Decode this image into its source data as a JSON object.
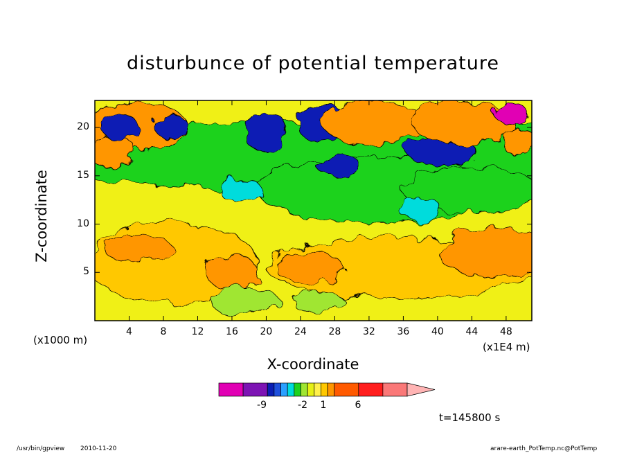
{
  "chart_data": {
    "type": "heatmap",
    "title": "disturbunce of potential temperature",
    "xlabel": "X-coordinate",
    "ylabel": "Z-coordinate",
    "x_unit_left": "(x1000 m)",
    "x_unit_right": "(x1E4 m)",
    "x_ticks": [
      "4",
      "8",
      "12",
      "16",
      "20",
      "24",
      "28",
      "32",
      "36",
      "40",
      "44",
      "48"
    ],
    "y_ticks": [
      "5",
      "10",
      "15",
      "20"
    ],
    "xlim": [
      0,
      51
    ],
    "ylim": [
      0,
      22.8
    ],
    "colorbar": {
      "labels": [
        "-9",
        "-2",
        "1",
        "6"
      ],
      "colors": [
        "#e100b4",
        "#7d14b4",
        "#0a1eb4",
        "#1e50dc",
        "#2aa0ff",
        "#00dcdc",
        "#1ed21e",
        "#a0e632",
        "#e6f014",
        "#fff04b",
        "#ffc800",
        "#ff9600",
        "#ff5a00",
        "#ff1e1e",
        "#fa7878",
        "#ffb4b4"
      ]
    },
    "time_label": "t=145800 s",
    "field": [
      [
        "fill",
        "#f0f014"
      ],
      [
        "blob",
        9,
        6,
        10,
        4.2,
        "#ffc800"
      ],
      [
        "blob",
        36,
        5.5,
        16,
        3.2,
        "#ffc800"
      ],
      [
        "blob",
        47,
        7,
        7,
        2.5,
        "#ff9600"
      ],
      [
        "blob",
        16,
        5,
        3,
        1.8,
        "#ff9600"
      ],
      [
        "blob",
        25,
        5.5,
        4,
        1.6,
        "#ff9600"
      ],
      [
        "blob",
        5,
        7.5,
        4,
        1.4,
        "#ff9600"
      ],
      [
        "blob",
        17.5,
        2,
        4,
        1.4,
        "#a0e632"
      ],
      [
        "blob",
        26,
        2,
        3,
        1.1,
        "#a0e632"
      ],
      [
        "blob",
        34,
        17,
        44,
        3.8,
        "#1ed21e"
      ],
      [
        "blob",
        33,
        13.5,
        14,
        3.5,
        "#1ed21e"
      ],
      [
        "blob",
        44,
        13.5,
        8,
        2.4,
        "#1ed21e"
      ],
      [
        "blob",
        4,
        20,
        7,
        2.5,
        "#ff9600"
      ],
      [
        "blob",
        2,
        17.5,
        3,
        1.4,
        "#ff9600"
      ],
      [
        "blob",
        38,
        11.5,
        2.5,
        1.2,
        "#00dcdc"
      ],
      [
        "blob",
        17,
        13.5,
        2.5,
        1.2,
        "#00dcdc"
      ],
      [
        "blob",
        26.5,
        20.5,
        3,
        2,
        "#0a1eb4"
      ],
      [
        "blob",
        20,
        19.5,
        2.5,
        2.2,
        "#0a1eb4"
      ],
      [
        "blob",
        28.5,
        16,
        2.5,
        1.2,
        "#0a1eb4"
      ],
      [
        "blob",
        40.5,
        17.5,
        4,
        1.5,
        "#0a1eb4"
      ],
      [
        "blob",
        3,
        20,
        2,
        1.5,
        "#0a1eb4"
      ],
      [
        "blob",
        9,
        20,
        2,
        1.2,
        "#0a1eb4"
      ],
      [
        "blob",
        32.5,
        20.5,
        6,
        2.2,
        "#ff9600"
      ],
      [
        "blob",
        43,
        20.5,
        6,
        2.2,
        "#ff9600"
      ],
      [
        "blob",
        49.5,
        18.5,
        1.8,
        1.6,
        "#ff9600"
      ],
      [
        "blob",
        48.5,
        21.5,
        2,
        1,
        "#e100b4"
      ]
    ]
  },
  "footer": {
    "left_program": "/usr/bin/gpview",
    "left_date": "2010-11-20",
    "right_source": "arare-earth_PotTemp.nc@PotTemp"
  }
}
